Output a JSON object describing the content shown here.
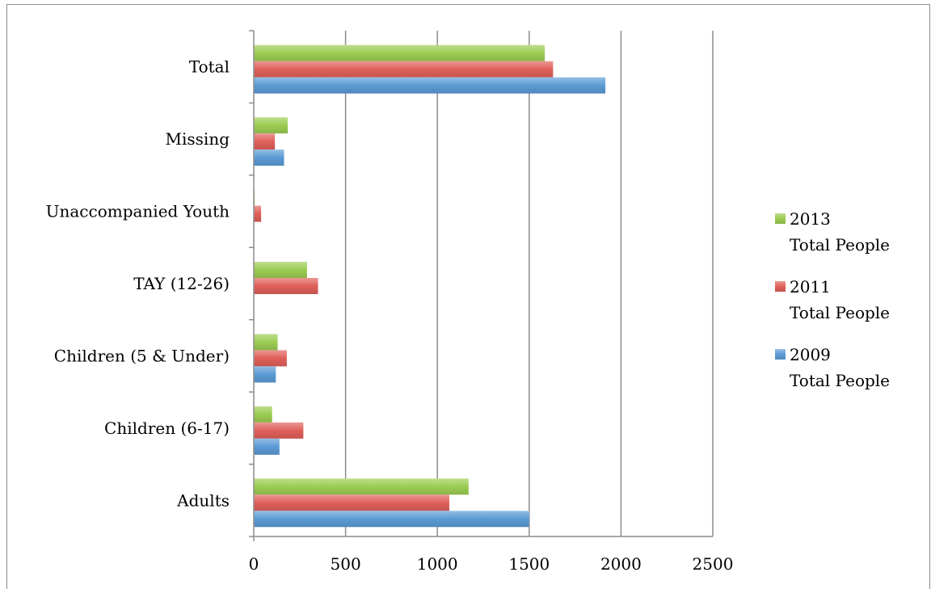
{
  "chart_data": {
    "type": "bar",
    "orientation": "horizontal",
    "title": "",
    "xlabel": "",
    "ylabel": "",
    "categories": [
      "Adults",
      "Children (6-17)",
      "Children (5 & Under)",
      "TAY (12-26)",
      "Unaccompanied Youth",
      "Missing",
      "Total"
    ],
    "series": [
      {
        "name": "2013 Total People",
        "legend_lines": [
          "2013",
          "Total People"
        ],
        "color": "#9ccc52",
        "values": [
          1170,
          100,
          130,
          290,
          5,
          185,
          1585
        ]
      },
      {
        "name": "2011 Total People",
        "legend_lines": [
          "2011",
          "Total People"
        ],
        "color": "#e0605a",
        "values": [
          1065,
          270,
          180,
          350,
          40,
          115,
          1630
        ]
      },
      {
        "name": "2009 Total People",
        "legend_lines": [
          "2009",
          "Total People"
        ],
        "color": "#5b9bd5",
        "values": [
          1500,
          140,
          120,
          0,
          0,
          165,
          1915
        ]
      }
    ],
    "xlim": [
      0,
      2500
    ],
    "xticks": [
      "0",
      "500",
      "1000",
      "1500",
      "2000",
      "2500"
    ],
    "grid": true,
    "legend": "right"
  }
}
